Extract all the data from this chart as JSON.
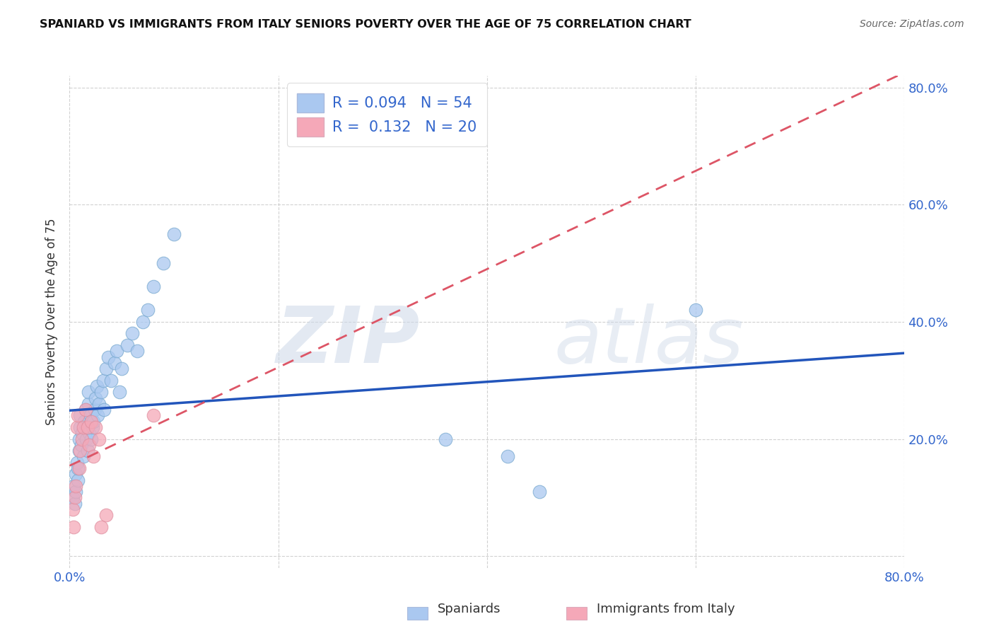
{
  "title": "SPANIARD VS IMMIGRANTS FROM ITALY SENIORS POVERTY OVER THE AGE OF 75 CORRELATION CHART",
  "source": "Source: ZipAtlas.com",
  "ylabel": "Seniors Poverty Over the Age of 75",
  "xlabel_spaniards": "Spaniards",
  "xlabel_italy": "Immigrants from Italy",
  "watermark_zip": "ZIP",
  "watermark_atlas": "atlas",
  "legend_r_spaniards": "R = 0.094",
  "legend_n_spaniards": "N = 54",
  "legend_r_italy": "R = 0.132",
  "legend_n_italy": "N = 20",
  "color_spaniards": "#aac8f0",
  "color_italy": "#f5a8b8",
  "line_color_spaniards": "#2255bb",
  "line_color_italy": "#dd5566",
  "xlim": [
    0.0,
    0.8
  ],
  "ylim": [
    -0.02,
    0.82
  ],
  "x_ticks": [
    0.0,
    0.2,
    0.4,
    0.6,
    0.8
  ],
  "x_tick_labels": [
    "0.0%",
    "",
    "",
    "",
    "80.0%"
  ],
  "y_ticks": [
    0.0,
    0.2,
    0.4,
    0.6,
    0.8
  ],
  "y_tick_labels_left": [
    "",
    "",
    "",
    "",
    ""
  ],
  "y_tick_labels_right": [
    "20.0%",
    "40.0%",
    "60.0%",
    "80.0%"
  ],
  "spaniards_x": [
    0.003,
    0.004,
    0.005,
    0.006,
    0.006,
    0.007,
    0.008,
    0.008,
    0.009,
    0.009,
    0.01,
    0.01,
    0.011,
    0.012,
    0.013,
    0.014,
    0.015,
    0.016,
    0.016,
    0.017,
    0.018,
    0.018,
    0.019,
    0.02,
    0.021,
    0.022,
    0.023,
    0.024,
    0.025,
    0.026,
    0.027,
    0.028,
    0.03,
    0.032,
    0.033,
    0.035,
    0.037,
    0.04,
    0.043,
    0.045,
    0.048,
    0.05,
    0.055,
    0.06,
    0.065,
    0.07,
    0.075,
    0.08,
    0.09,
    0.1,
    0.36,
    0.42,
    0.45,
    0.6
  ],
  "spaniards_y": [
    0.1,
    0.12,
    0.09,
    0.11,
    0.14,
    0.16,
    0.13,
    0.15,
    0.18,
    0.2,
    0.22,
    0.24,
    0.19,
    0.21,
    0.17,
    0.23,
    0.25,
    0.2,
    0.22,
    0.18,
    0.26,
    0.28,
    0.21,
    0.24,
    0.2,
    0.22,
    0.23,
    0.25,
    0.27,
    0.29,
    0.24,
    0.26,
    0.28,
    0.3,
    0.25,
    0.32,
    0.34,
    0.3,
    0.33,
    0.35,
    0.28,
    0.32,
    0.36,
    0.38,
    0.35,
    0.4,
    0.42,
    0.46,
    0.5,
    0.55,
    0.2,
    0.17,
    0.11,
    0.42
  ],
  "italy_x": [
    0.003,
    0.004,
    0.005,
    0.006,
    0.007,
    0.008,
    0.009,
    0.01,
    0.012,
    0.013,
    0.015,
    0.017,
    0.019,
    0.021,
    0.023,
    0.025,
    0.028,
    0.03,
    0.035,
    0.08
  ],
  "italy_y": [
    0.08,
    0.05,
    0.1,
    0.12,
    0.22,
    0.24,
    0.15,
    0.18,
    0.2,
    0.22,
    0.25,
    0.22,
    0.19,
    0.23,
    0.17,
    0.22,
    0.2,
    0.05,
    0.07,
    0.24
  ]
}
